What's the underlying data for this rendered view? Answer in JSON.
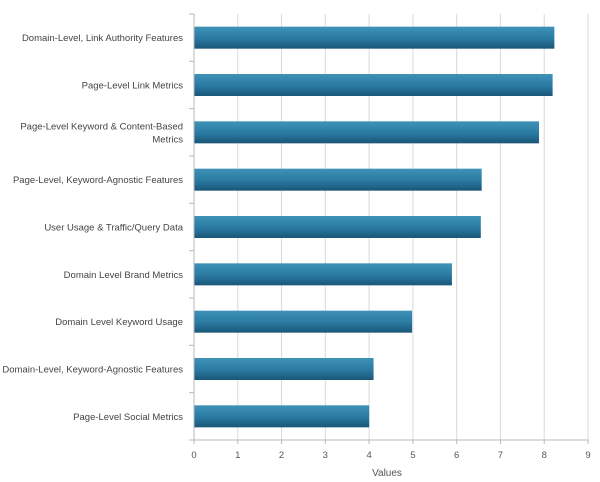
{
  "chart_data": {
    "type": "bar",
    "orientation": "horizontal",
    "categories": [
      "Domain-Level, Link Authority Features",
      "Page-Level Link Metrics",
      "Page-Level Keyword & Content-Based Metrics",
      "Page-Level, Keyword-Agnostic Features",
      "User Usage & Traffic/Query Data",
      "Domain Level Brand Metrics",
      "Domain Level Keyword Usage",
      "Domain-Level, Keyword-Agnostic Features",
      "Page-Level Social Metrics"
    ],
    "category_lines": [
      [
        "Domain-Level, Link Authority Features"
      ],
      [
        "Page-Level Link Metrics"
      ],
      [
        "Page-Level Keyword & Content-Based",
        "Metrics"
      ],
      [
        "Page-Level, Keyword-Agnostic Features"
      ],
      [
        "User Usage & Traffic/Query Data"
      ],
      [
        "Domain Level Brand Metrics"
      ],
      [
        "Domain Level Keyword Usage"
      ],
      [
        "Domain-Level, Keyword-Agnostic Features"
      ],
      [
        "Page-Level Social Metrics"
      ]
    ],
    "values": [
      8.22,
      8.18,
      7.87,
      6.56,
      6.54,
      5.88,
      4.97,
      4.09,
      3.99
    ],
    "xlabel": "Values",
    "ylabel": "",
    "title": "",
    "xlim": [
      0,
      9
    ],
    "xticks": [
      "0",
      "1",
      "2",
      "3",
      "4",
      "5",
      "6",
      "7",
      "8",
      "9"
    ],
    "grid": "vertical",
    "legend": "none",
    "colors": {
      "bar_top": "#3f93b7",
      "bar_mid": "#2a79a2",
      "bar_bottom": "#195677",
      "grid": "#d9d9d9",
      "axis": "#b8b8b8"
    }
  }
}
